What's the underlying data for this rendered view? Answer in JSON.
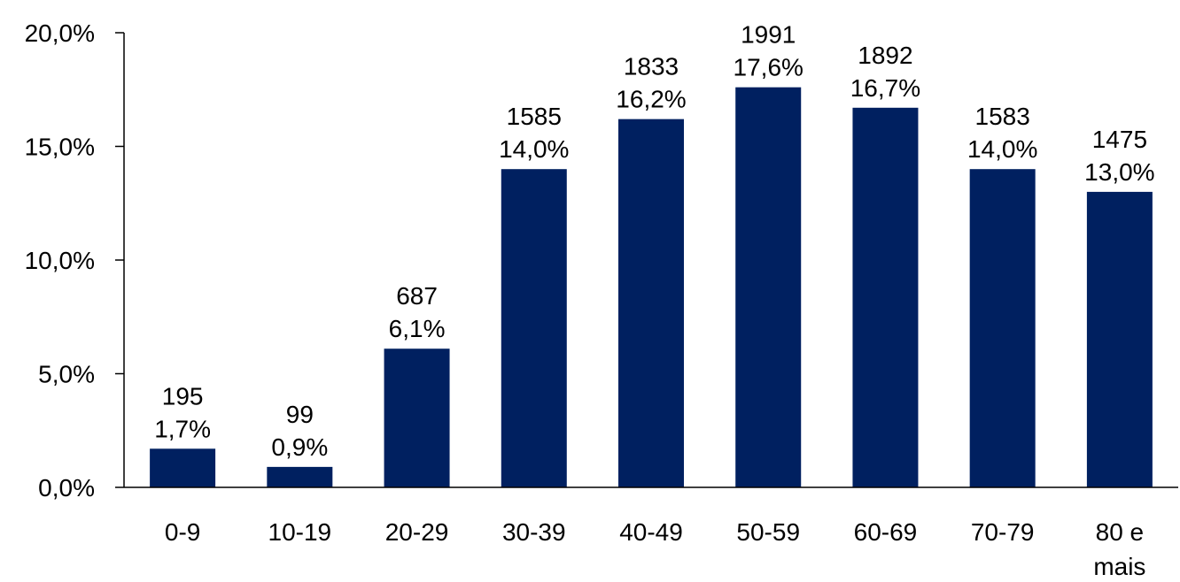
{
  "chart_data": {
    "type": "bar",
    "title": "",
    "xlabel": "",
    "ylabel": "",
    "categories": [
      "0-9",
      "10-19",
      "20-29",
      "30-39",
      "40-49",
      "50-59",
      "60-69",
      "70-79",
      "80 e mais"
    ],
    "values": [
      1.7,
      0.9,
      6.1,
      14.0,
      16.2,
      17.6,
      16.7,
      14.0,
      13.0
    ],
    "counts": [
      195,
      99,
      687,
      1585,
      1833,
      1991,
      1892,
      1583,
      1475
    ],
    "value_labels": [
      "1,7%",
      "0,9%",
      "6,1%",
      "14,0%",
      "16,2%",
      "17,6%",
      "16,7%",
      "14,0%",
      "13,0%"
    ],
    "count_labels": [
      "195",
      "99",
      "687",
      "1585",
      "1833",
      "1991",
      "1892",
      "1583",
      "1475"
    ],
    "ylim": [
      0,
      20
    ],
    "yticks": [
      0,
      5,
      10,
      15,
      20
    ],
    "ytick_labels": [
      "0,0%",
      "5,0%",
      "10,0%",
      "15,0%",
      "20,0%"
    ],
    "grid": false,
    "legend": "none",
    "bar_color": "#002060",
    "axis_color": "#000000"
  }
}
